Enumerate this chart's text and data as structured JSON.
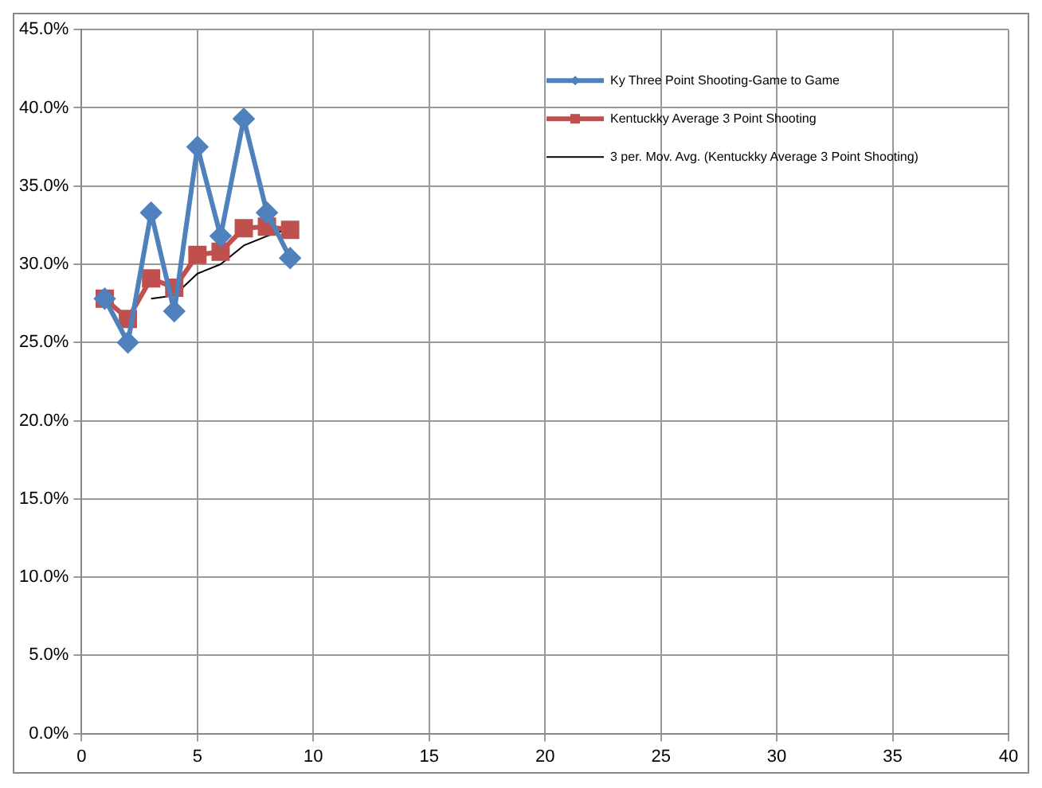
{
  "chart_data": {
    "type": "line",
    "xlim": [
      0,
      40
    ],
    "xticks": [
      0,
      5,
      10,
      15,
      20,
      25,
      30,
      35,
      40
    ],
    "ylim": [
      0,
      45
    ],
    "yticks": [
      {
        "value": 0,
        "label": "0.0%"
      },
      {
        "value": 5,
        "label": "5.0%"
      },
      {
        "value": 10,
        "label": "10.0%"
      },
      {
        "value": 15,
        "label": "15.0%"
      },
      {
        "value": 20,
        "label": "20.0%"
      },
      {
        "value": 25,
        "label": "25.0%"
      },
      {
        "value": 30,
        "label": "30.0%"
      },
      {
        "value": 35,
        "label": "35.0%"
      },
      {
        "value": 40,
        "label": "40.0%"
      },
      {
        "value": 45,
        "label": "45.0%"
      }
    ],
    "grid": true,
    "legend": "top right",
    "series": [
      {
        "name": "Ky Three Point Shooting-Game to Game",
        "color": "#4f81bd",
        "marker": "diamond",
        "x": [
          1,
          2,
          3,
          4,
          5,
          6,
          7,
          8,
          9
        ],
        "values": [
          27.8,
          25.0,
          33.3,
          27.0,
          37.5,
          31.8,
          39.3,
          33.3,
          30.4
        ]
      },
      {
        "name": "Kentuckky Average 3 Point Shooting",
        "color": "#c0504d",
        "marker": "square",
        "x": [
          1,
          2,
          3,
          4,
          5,
          6,
          7,
          8,
          9
        ],
        "values": [
          27.8,
          26.5,
          29.1,
          28.5,
          30.6,
          30.8,
          32.3,
          32.4,
          32.2
        ]
      },
      {
        "name": "3 per. Mov. Avg. (Kentuckky Average 3 Point Shooting)",
        "color": "#000000",
        "marker": "none",
        "x": [
          3,
          4,
          5,
          6,
          7,
          8,
          9
        ],
        "values": [
          27.8,
          28.0,
          29.4,
          30.0,
          31.2,
          31.8,
          32.3
        ]
      }
    ]
  }
}
